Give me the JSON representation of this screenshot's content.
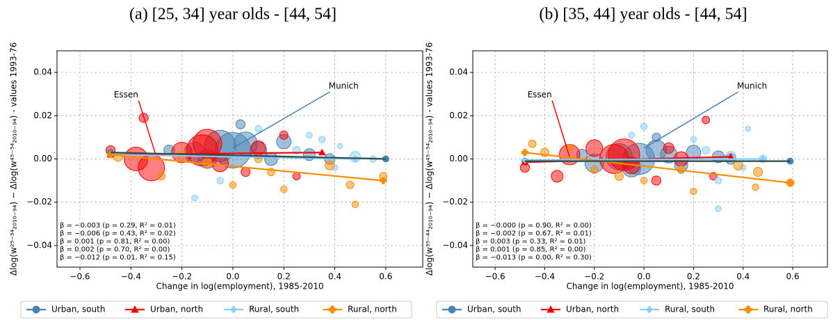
{
  "chart_data": [
    {
      "type": "scatter",
      "title": "(a) [25, 34] year olds - [44, 54]",
      "xlabel": "Change in log(employment), 1985-2010",
      "ylabel": "Δlog(w²⁵⁻³⁴₂₀₁₀₋₉₄) − Δlog(w⁴⁵⁻⁵⁴₂₀₁₀₋₉₄) - values 1993-76",
      "xlim": [
        -0.69,
        0.745
      ],
      "ylim": [
        -0.05,
        0.05
      ],
      "xticks": [
        {
          "value": -0.6,
          "label": "−0.6"
        },
        {
          "value": -0.4,
          "label": "−0.4"
        },
        {
          "value": -0.2,
          "label": "−0.2"
        },
        {
          "value": 0,
          "label": "0.0"
        },
        {
          "value": 0.2,
          "label": "0.2"
        },
        {
          "value": 0.4,
          "label": "0.4"
        },
        {
          "value": 0.6,
          "label": "0.6"
        }
      ],
      "yticks": [
        {
          "value": -0.04,
          "label": "−0.04"
        },
        {
          "value": -0.02,
          "label": "−0.02"
        },
        {
          "value": 0,
          "label": "0.00"
        },
        {
          "value": 0.02,
          "label": "0.02"
        },
        {
          "value": 0.04,
          "label": "0.04"
        }
      ],
      "grid": true,
      "series": [
        {
          "name": "Urban, south",
          "color": "#4682b4",
          "marker": "circle",
          "x": [
            -0.05,
            0.0,
            0.05,
            -0.15,
            0.1,
            0.2,
            0.3,
            0.03,
            -0.25,
            0.15,
            0.38,
            -0.1
          ],
          "values": [
            0.006,
            0.004,
            0.007,
            0.003,
            0.004,
            0.008,
            0.002,
            0.016,
            0.004,
            0.0,
            0.0,
            0.0
          ],
          "sizes": [
            700,
            900,
            400,
            300,
            200,
            150,
            100,
            60,
            80,
            120,
            80,
            250
          ],
          "fit": {
            "x": [
              -0.48,
              0.6
            ],
            "values": [
              0.003,
              0.0
            ]
          }
        },
        {
          "name": "Urban, north",
          "color": "#ff0000",
          "marker": "triangle",
          "x": [
            -0.35,
            -0.38,
            -0.32,
            -0.1,
            -0.12,
            -0.2,
            -0.05,
            0.1,
            0.2,
            0.25,
            -0.48,
            0.05
          ],
          "values": [
            0.019,
            0.0,
            -0.004,
            0.007,
            0.004,
            0.003,
            -0.002,
            0.005,
            0.011,
            -0.008,
            0.004,
            -0.006
          ],
          "sizes": [
            60,
            400,
            500,
            600,
            700,
            300,
            200,
            150,
            50,
            40,
            60,
            60
          ],
          "fit": {
            "x": [
              -0.48,
              0.35
            ],
            "values": [
              0.002,
              0.003
            ]
          }
        },
        {
          "name": "Rural, south",
          "color": "#87cefa",
          "marker": "diamond",
          "x": [
            -0.15,
            0.1,
            0.3,
            0.48,
            0.55,
            0.4,
            0.25,
            0.35,
            -0.05,
            0.42
          ],
          "values": [
            -0.018,
            0.014,
            0.011,
            0.001,
            0.0,
            -0.004,
            0.004,
            0.009,
            -0.01,
            0.006
          ],
          "sizes": [
            25,
            30,
            25,
            80,
            30,
            25,
            40,
            30,
            30,
            20
          ],
          "fit": {
            "x": [
              -0.48,
              0.48
            ],
            "values": [
              0.002,
              0.0
            ]
          }
        },
        {
          "name": "Rural, north",
          "color": "#ff8c00",
          "marker": "plus",
          "x": [
            -0.28,
            -0.1,
            0.0,
            0.15,
            0.38,
            0.46,
            0.48,
            0.59,
            -0.45,
            0.2,
            -0.2,
            0.1
          ],
          "values": [
            -0.008,
            -0.002,
            -0.012,
            -0.006,
            -0.003,
            -0.012,
            -0.021,
            -0.008,
            0.001,
            -0.014,
            0.002,
            0.0
          ],
          "sizes": [
            40,
            60,
            30,
            40,
            60,
            40,
            30,
            40,
            60,
            30,
            50,
            40
          ],
          "fit": {
            "x": [
              -0.48,
              0.59
            ],
            "values": [
              0.002,
              -0.01
            ]
          }
        }
      ],
      "overall_fit": {
        "color": "#2f4f4f",
        "x": [
          -0.48,
          0.6
        ],
        "values": [
          0.003,
          0.0
        ]
      },
      "stats": [
        {
          "text": "β = −0.003 (p = 0.29, R² = 0.01)",
          "color": "#2f4f4f"
        },
        {
          "text": "β = −0.006 (p = 0.43, R² = 0.02)",
          "color": "#4682b4"
        },
        {
          "text": "β = 0.001 (p = 0.81, R² = 0.00)",
          "color": "#ff0000"
        },
        {
          "text": "β = 0.002 (p = 0.70, R² = 0.00)",
          "color": "#87cefa"
        },
        {
          "text": "β = −0.012 (p = 0.01, R² = 0.15)",
          "color": "#ff8c00"
        }
      ],
      "callouts": [
        {
          "text": "Essen",
          "x": -0.3,
          "y": 0.001
        },
        {
          "text": "Munich",
          "x": 0.0,
          "y": 0.005
        }
      ]
    },
    {
      "type": "scatter",
      "title": "(b) [35, 44] year olds - [44, 54]",
      "xlabel": "Change in log(employment), 1985-2010",
      "ylabel": "Δlog(w³⁵⁻⁴⁴₂₀₁₀₋₉₄) − Δlog(w⁴⁵⁻⁵⁴₂₀₁₀₋₉₄) - values 1993-76",
      "xlim": [
        -0.69,
        0.74
      ],
      "ylim": [
        -0.05,
        0.05
      ],
      "xticks": [
        {
          "value": -0.6,
          "label": "−0.6"
        },
        {
          "value": -0.4,
          "label": "−0.4"
        },
        {
          "value": -0.2,
          "label": "−0.2"
        },
        {
          "value": 0,
          "label": "0.0"
        },
        {
          "value": 0.2,
          "label": "0.2"
        },
        {
          "value": 0.4,
          "label": "0.4"
        },
        {
          "value": 0.6,
          "label": "0.6"
        }
      ],
      "yticks": [
        {
          "value": -0.04,
          "label": "−0.04"
        },
        {
          "value": -0.02,
          "label": "−0.02"
        },
        {
          "value": 0,
          "label": "0.00"
        },
        {
          "value": 0.02,
          "label": "0.02"
        },
        {
          "value": 0.04,
          "label": "0.04"
        }
      ],
      "grid": true,
      "series": [
        {
          "name": "Urban, south",
          "color": "#4682b4",
          "marker": "circle",
          "x": [
            -0.1,
            -0.02,
            0.05,
            -0.2,
            0.1,
            0.2,
            0.3,
            0.05,
            -0.25,
            0.15,
            0.35,
            -0.05
          ],
          "values": [
            0.001,
            0.0,
            0.004,
            -0.002,
            0.002,
            0.003,
            0.001,
            0.01,
            0.002,
            -0.003,
            0.0,
            -0.004
          ],
          "sizes": [
            500,
            700,
            300,
            250,
            200,
            150,
            100,
            50,
            80,
            120,
            80,
            250
          ],
          "fit": {
            "x": [
              -0.48,
              0.59
            ],
            "values": [
              -0.001,
              -0.001
            ]
          }
        },
        {
          "name": "Urban, north",
          "color": "#ff0000",
          "marker": "triangle",
          "x": [
            -0.35,
            -0.3,
            -0.08,
            -0.12,
            -0.2,
            -0.05,
            0.15,
            0.25,
            0.28,
            0.05,
            -0.48,
            0.1
          ],
          "values": [
            -0.008,
            0.002,
            0.002,
            0.0,
            0.005,
            -0.003,
            0.0,
            0.018,
            -0.008,
            -0.01,
            -0.004,
            0.005
          ],
          "sizes": [
            100,
            300,
            700,
            600,
            200,
            200,
            150,
            40,
            40,
            60,
            60,
            80
          ],
          "fit": {
            "x": [
              -0.48,
              0.35
            ],
            "values": [
              -0.0015,
              0.001
            ]
          }
        },
        {
          "name": "Rural, south",
          "color": "#87cefa",
          "marker": "diamond",
          "x": [
            -0.05,
            0.0,
            0.2,
            0.35,
            0.48,
            0.4,
            0.25,
            0.3,
            0.3,
            0.42
          ],
          "values": [
            0.011,
            0.015,
            0.009,
            0.001,
            0.0,
            -0.004,
            0.004,
            -0.01,
            -0.023,
            0.014
          ],
          "sizes": [
            25,
            30,
            25,
            80,
            40,
            25,
            40,
            30,
            25,
            20
          ],
          "fit": {
            "x": [
              -0.48,
              0.48
            ],
            "values": [
              -0.0005,
              0.0
            ]
          }
        },
        {
          "name": "Rural, north",
          "color": "#ff8c00",
          "marker": "plus",
          "x": [
            -0.45,
            -0.4,
            -0.2,
            0.0,
            0.15,
            0.38,
            0.46,
            0.59,
            0.2,
            -0.1,
            0.45,
            -0.3
          ],
          "values": [
            0.007,
            0.003,
            -0.005,
            -0.01,
            -0.005,
            -0.003,
            -0.006,
            -0.011,
            -0.015,
            -0.008,
            -0.013,
            0.005
          ],
          "sizes": [
            40,
            50,
            40,
            30,
            40,
            60,
            60,
            40,
            30,
            50,
            30,
            40
          ],
          "fit": {
            "x": [
              -0.48,
              0.59
            ],
            "values": [
              0.003,
              -0.011
            ]
          }
        }
      ],
      "overall_fit": {
        "color": "#2f4f4f",
        "x": [
          -0.48,
          0.59
        ],
        "values": [
          -0.001,
          -0.001
        ]
      },
      "stats": [
        {
          "text": "β = −0.000 (p = 0.90, R² = 0.00)",
          "color": "#2f4f4f"
        },
        {
          "text": "β = −0.002 (p = 0.67, R² = 0.01)",
          "color": "#4682b4"
        },
        {
          "text": "β = 0.003 (p = 0.33, R² = 0.01)",
          "color": "#ff0000"
        },
        {
          "text": "β = 0.001 (p = 0.85, R² = 0.00)",
          "color": "#87cefa"
        },
        {
          "text": "β = −0.013 (p = 0.00, R² = 0.30)",
          "color": "#ff8c00"
        }
      ],
      "callouts": [
        {
          "text": "Essen",
          "x": -0.3,
          "y": 0.001
        },
        {
          "text": "Munich",
          "x": 0.0,
          "y": 0.005
        }
      ]
    }
  ]
}
